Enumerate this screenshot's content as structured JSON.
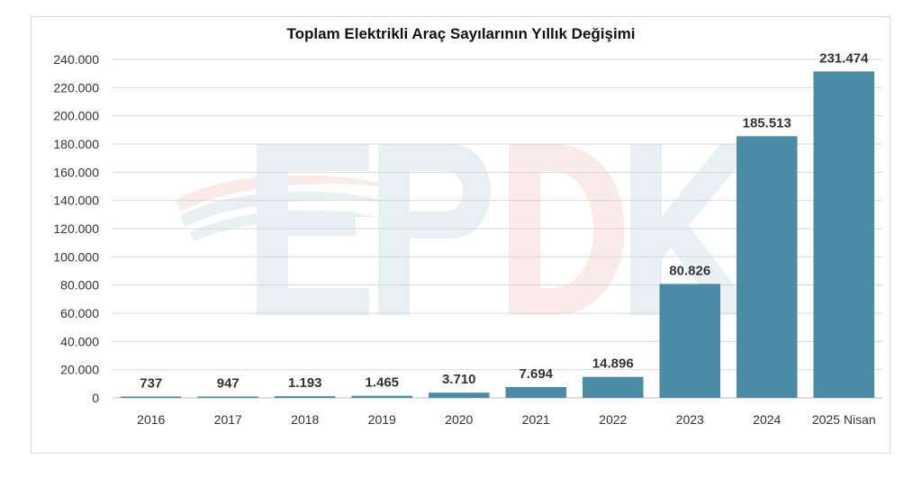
{
  "chart_data": {
    "type": "bar",
    "title": "Toplam Elektrikli Araç Sayılarının Yıllık Değişimi",
    "xlabel": "",
    "ylabel": "",
    "ylim": [
      0,
      240000
    ],
    "yticks": [
      0,
      20000,
      40000,
      60000,
      80000,
      100000,
      120000,
      140000,
      160000,
      180000,
      200000,
      220000,
      240000
    ],
    "ytick_labels": [
      "0",
      "20.000",
      "40.000",
      "60.000",
      "80.000",
      "100.000",
      "120.000",
      "140.000",
      "160.000",
      "180.000",
      "200.000",
      "220.000",
      "240.000"
    ],
    "categories": [
      "2016",
      "2017",
      "2018",
      "2019",
      "2020",
      "2021",
      "2022",
      "2023",
      "2024",
      "2025 Nisan"
    ],
    "values": [
      737,
      947,
      1193,
      1465,
      3710,
      7694,
      14896,
      80826,
      185513,
      231474
    ],
    "data_labels": [
      "737",
      "947",
      "1.193",
      "1.465",
      "3.710",
      "7.694",
      "14.896",
      "80.826",
      "185.513",
      "231.474"
    ],
    "bar_color": "#4a8ca6",
    "grid": true,
    "legend": "none"
  },
  "watermark": {
    "text": "EPDK",
    "colors": [
      "#4a8ca6",
      "#e05a5a"
    ]
  }
}
